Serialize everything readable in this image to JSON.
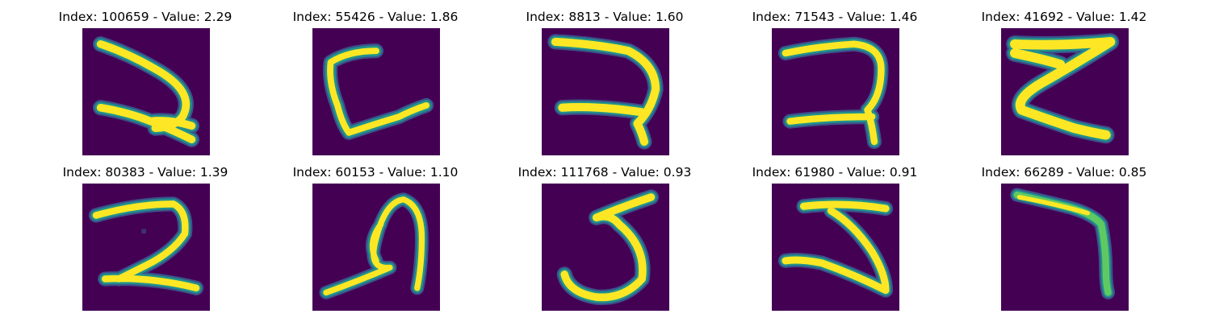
{
  "colors": {
    "background": "#440154",
    "stroke_mid": "#21918c",
    "stroke_edge": "#3b528b",
    "stroke_core": "#fde725",
    "stroke_light": "#5ec962"
  },
  "panels": [
    {
      "title": "Index: 100659 - Value: 2.29",
      "glyph": "2"
    },
    {
      "title": "Index: 55426 - Value: 1.86",
      "glyph": "L"
    },
    {
      "title": "Index: 8813 - Value: 1.60",
      "glyph": "2"
    },
    {
      "title": "Index: 71543 - Value: 1.46",
      "glyph": "2"
    },
    {
      "title": "Index: 41692 - Value: 1.42",
      "glyph": "Z"
    },
    {
      "title": "Index: 80383 - Value: 1.39",
      "glyph": "2"
    },
    {
      "title": "Index: 60153 - Value: 1.10",
      "glyph": "A"
    },
    {
      "title": "Index: 111768 - Value: 0.93",
      "glyph": "5"
    },
    {
      "title": "Index: 61980 - Value: 0.91",
      "glyph": "5"
    },
    {
      "title": "Index: 66289 - Value: 0.85",
      "glyph": "7"
    }
  ]
}
